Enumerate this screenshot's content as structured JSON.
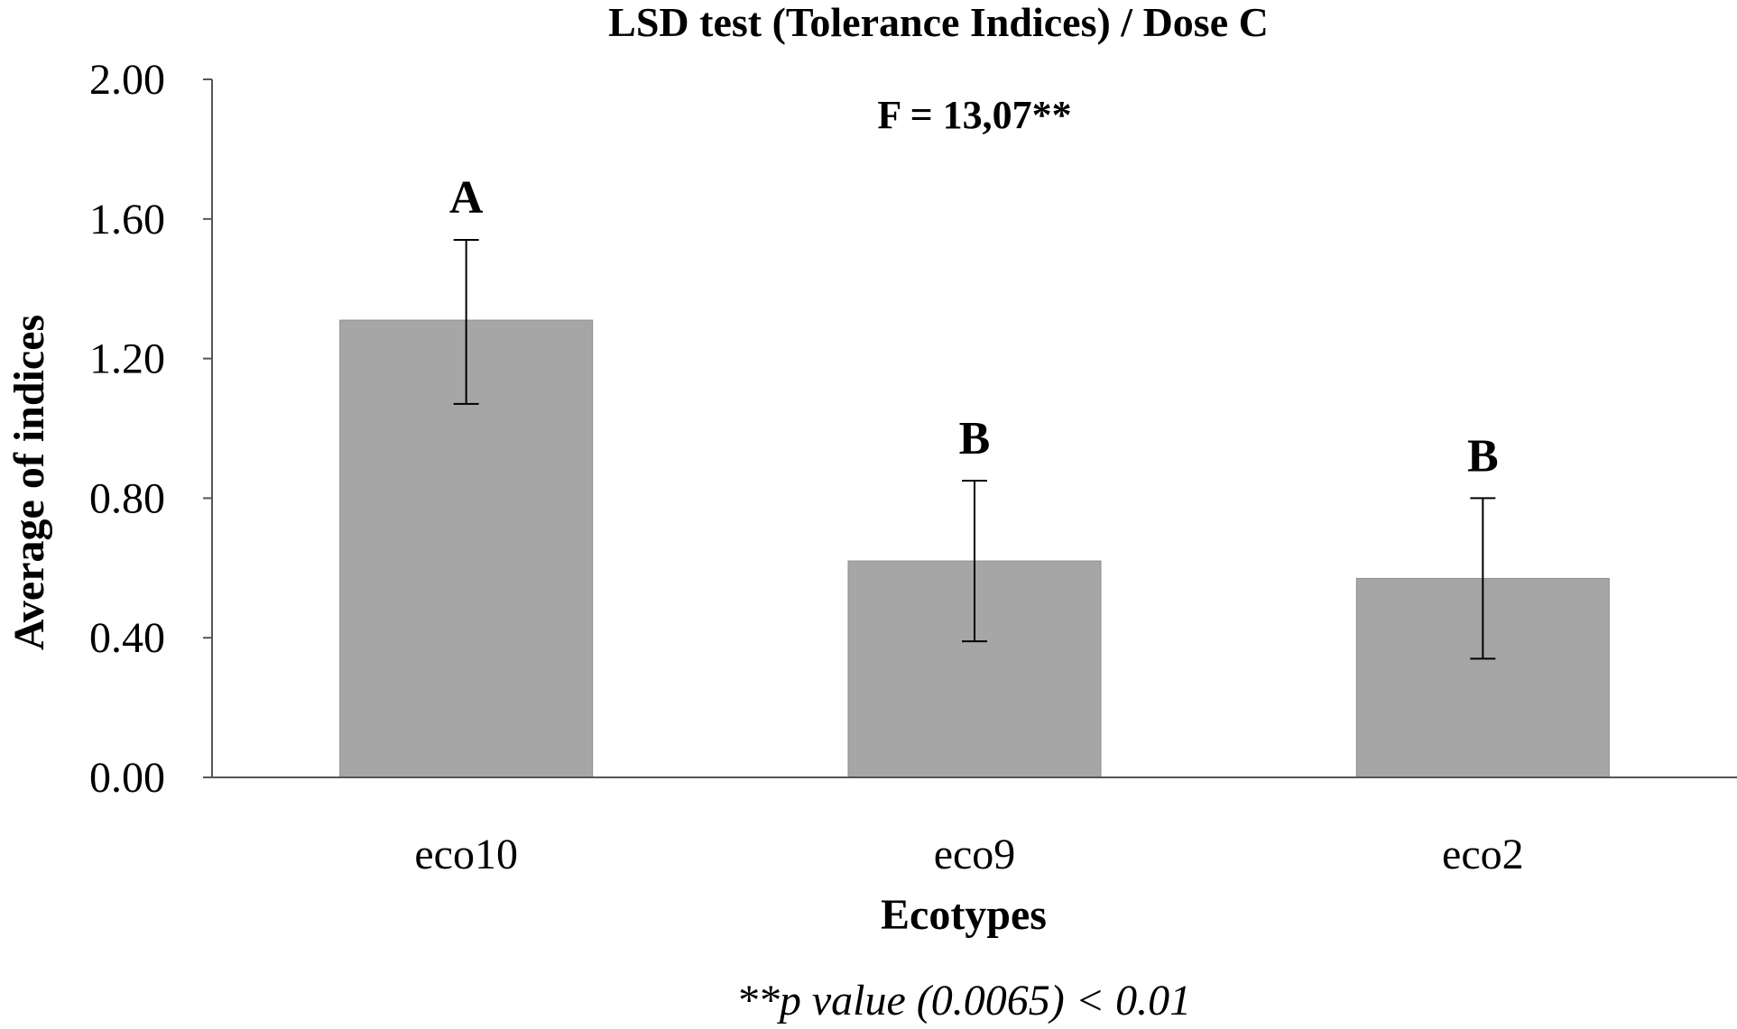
{
  "chart_data": {
    "type": "bar",
    "title": "LSD test (Tolerance Indices) / Dose C",
    "annotation": "F = 13,07**",
    "xlabel": "Ecotypes",
    "ylabel": "Average of indices",
    "footnote": "**p value (0.0065) < 0.01",
    "categories": [
      "eco10",
      "eco9",
      "eco2"
    ],
    "values": [
      1.31,
      0.62,
      0.57
    ],
    "error_upper": [
      1.54,
      0.85,
      0.8
    ],
    "error_lower": [
      1.07,
      0.39,
      0.34
    ],
    "group_letters": [
      "A",
      "B",
      "B"
    ],
    "ylim": [
      0,
      2
    ],
    "yticks": [
      "0.00",
      "0.40",
      "0.80",
      "1.20",
      "1.60",
      "2.00"
    ],
    "ytick_values": [
      0,
      0.4,
      0.8,
      1.2,
      1.6,
      2.0
    ],
    "grid": false,
    "bar_color": "#a6a6a6",
    "bar_stroke": "#8c8c8c"
  }
}
